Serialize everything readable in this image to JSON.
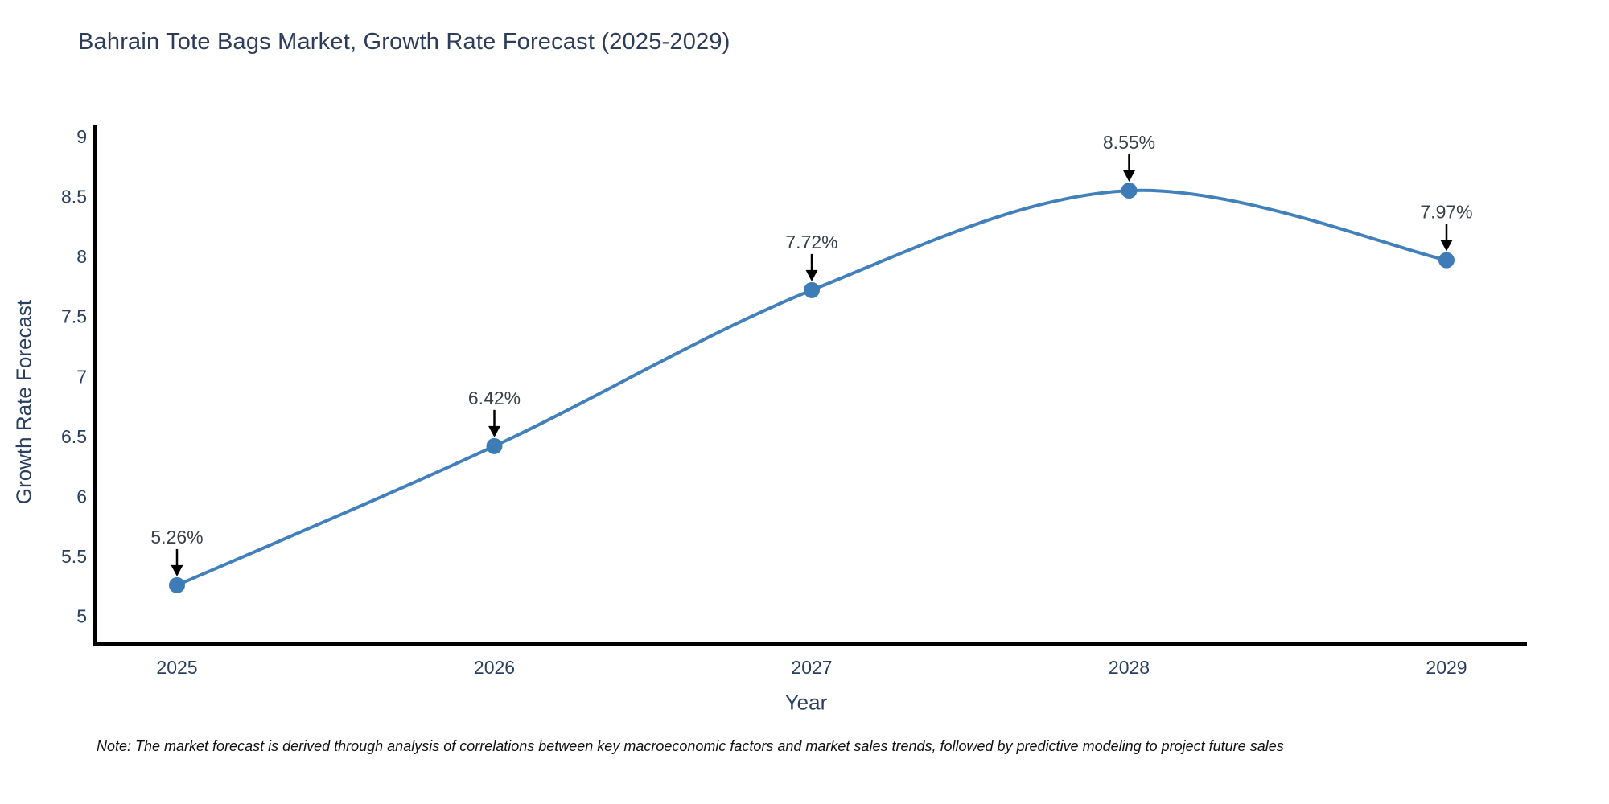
{
  "page": {
    "note": "Note: The market forecast is derived through analysis of correlations between key macroeconomic factors and market sales trends, followed by predictive modeling to project future sales"
  },
  "chart_data": {
    "type": "line",
    "title": "Bahrain Tote Bags Market, Growth Rate Forecast (2025-2029)",
    "xlabel": "Year",
    "ylabel": "Growth Rate Forecast",
    "categories": [
      "2025",
      "2026",
      "2027",
      "2028",
      "2029"
    ],
    "series": [
      {
        "name": "Growth Rate Forecast",
        "values": [
          5.26,
          6.42,
          7.72,
          8.55,
          7.97
        ],
        "labels": [
          "5.26%",
          "6.42%",
          "7.72%",
          "8.55%",
          "7.97%"
        ]
      }
    ],
    "ylim": [
      4.75,
      9.1
    ],
    "yticks": [
      5,
      5.5,
      6,
      6.5,
      7,
      7.5,
      8,
      8.5,
      9
    ],
    "ytick_labels": [
      "5",
      "5.5",
      "6",
      "6.5",
      "7",
      "7.5",
      "8",
      "8.5",
      "9"
    ],
    "grid": false,
    "legend": "none",
    "line_shape": "spline",
    "annotation_style": "value labels with downward black arrows at each point",
    "colors": {
      "line": "#4280bc",
      "marker": "#3e7cb8",
      "axis": "#000000",
      "text": "#2a3f5f",
      "annotation_text": "#3a404a",
      "arrow": "#000000",
      "background": "#ffffff"
    }
  }
}
